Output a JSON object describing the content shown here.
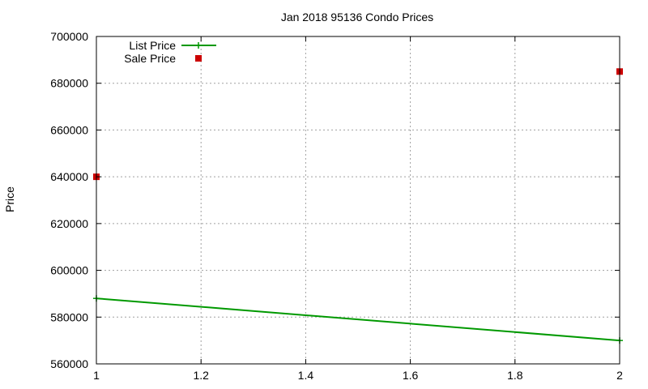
{
  "chart_data": {
    "type": "line",
    "title": "Jan 2018 95136 Condo Prices",
    "xlabel": "",
    "ylabel": "Price",
    "xlim": [
      1,
      2
    ],
    "ylim": [
      560000,
      700000
    ],
    "xticks": [
      1,
      1.2,
      1.4,
      1.6,
      1.8,
      2
    ],
    "xtick_labels": [
      "1",
      "1.2",
      "1.4",
      "1.6",
      "1.8",
      "2"
    ],
    "yticks": [
      560000,
      580000,
      600000,
      620000,
      640000,
      660000,
      680000,
      700000
    ],
    "ytick_labels": [
      "560000",
      "580000",
      "600000",
      "620000",
      "640000",
      "660000",
      "680000",
      "700000"
    ],
    "grid": true,
    "legend_position": "top-left",
    "series": [
      {
        "name": "List Price",
        "style": "line-with-points",
        "color": "#009900",
        "x": [
          1,
          2
        ],
        "y": [
          588000,
          570000
        ]
      },
      {
        "name": "Sale Price",
        "style": "points",
        "color": "#cc0000",
        "x": [
          1,
          2
        ],
        "y": [
          640000,
          685000
        ]
      }
    ]
  }
}
